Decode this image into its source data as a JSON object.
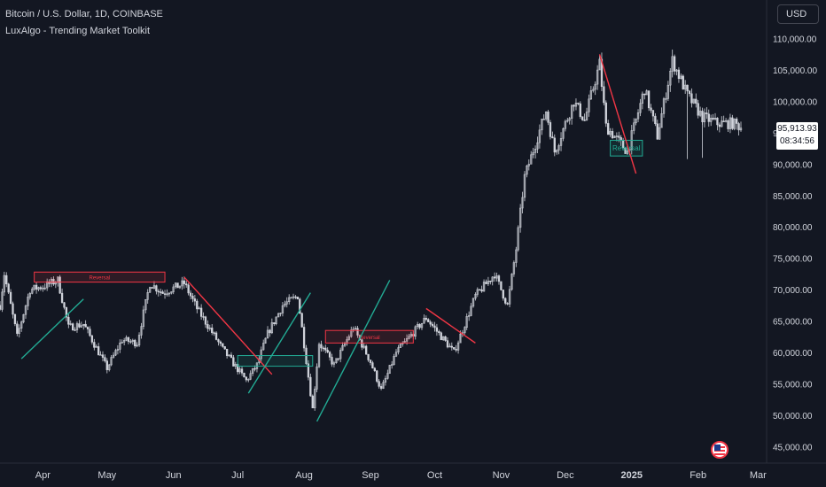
{
  "header": {
    "title": "Bitcoin / U.S. Dollar, 1D, COINBASE",
    "indicator": "LuxAlgo - Trending Market Toolkit"
  },
  "toolbar": {
    "currency": "USD"
  },
  "price_label": {
    "price": "95,913.93",
    "countdown": "08:34:56"
  },
  "chart_data": {
    "type": "candlestick",
    "x_tick_labels": [
      "Apr",
      "May",
      "Jun",
      "Jul",
      "Aug",
      "Sep",
      "Oct",
      "Nov",
      "Dec",
      "2025",
      "Feb",
      "Mar"
    ],
    "y_tick_labels": [
      "45,000.00",
      "50,000.00",
      "55,000.00",
      "60,000.00",
      "65,000.00",
      "70,000.00",
      "75,000.00",
      "80,000.00",
      "85,000.00",
      "90,000.00",
      "95,000.00",
      "100,000.00",
      "105,000.00",
      "110,000.00"
    ],
    "y_ticks": [
      45000,
      50000,
      55000,
      60000,
      65000,
      70000,
      75000,
      80000,
      85000,
      90000,
      95000,
      100000,
      105000,
      110000
    ],
    "x_range": [
      "2024-03-12",
      "2025-03-05"
    ],
    "last_price": 95913.93,
    "price_anchors": [
      [
        "2024-03-12",
        67500
      ],
      [
        "2024-03-14",
        72500
      ],
      [
        "2024-03-20",
        62500
      ],
      [
        "2024-03-26",
        70000
      ],
      [
        "2024-04-01",
        70500
      ],
      [
        "2024-04-08",
        71500
      ],
      [
        "2024-04-13",
        64000
      ],
      [
        "2024-04-20",
        64500
      ],
      [
        "2024-05-01",
        57500
      ],
      [
        "2024-05-08",
        62000
      ],
      [
        "2024-05-15",
        61500
      ],
      [
        "2024-05-21",
        71000
      ],
      [
        "2024-05-27",
        69500
      ],
      [
        "2024-06-06",
        71000
      ],
      [
        "2024-06-12",
        67000
      ],
      [
        "2024-06-24",
        60500
      ],
      [
        "2024-07-05",
        55500
      ],
      [
        "2024-07-10",
        58000
      ],
      [
        "2024-07-15",
        63000
      ],
      [
        "2024-07-22",
        67500
      ],
      [
        "2024-07-29",
        69000
      ],
      [
        "2024-08-05",
        51000
      ],
      [
        "2024-08-08",
        61500
      ],
      [
        "2024-08-15",
        58000
      ],
      [
        "2024-08-24",
        64000
      ],
      [
        "2024-09-01",
        58500
      ],
      [
        "2024-09-06",
        54000
      ],
      [
        "2024-09-13",
        60000
      ],
      [
        "2024-09-27",
        65500
      ],
      [
        "2024-10-10",
        60000
      ],
      [
        "2024-10-20",
        69000
      ],
      [
        "2024-10-29",
        72500
      ],
      [
        "2024-11-04",
        67500
      ],
      [
        "2024-11-08",
        76500
      ],
      [
        "2024-11-12",
        88000
      ],
      [
        "2024-11-22",
        98500
      ],
      [
        "2024-11-26",
        92000
      ],
      [
        "2024-12-05",
        100000
      ],
      [
        "2024-12-10",
        97000
      ],
      [
        "2024-12-17",
        106000
      ],
      [
        "2024-12-20",
        96000
      ],
      [
        "2024-12-30",
        92000
      ],
      [
        "2025-01-07",
        102000
      ],
      [
        "2025-01-13",
        94500
      ],
      [
        "2025-01-20",
        106500
      ],
      [
        "2025-01-27",
        101000
      ],
      [
        "2025-02-03",
        97500
      ],
      [
        "2025-02-10",
        96500
      ],
      [
        "2025-02-17",
        96500
      ],
      [
        "2025-02-21",
        95914
      ]
    ],
    "trend_lines": [
      {
        "color": "green",
        "from": [
          "2024-03-22",
          59000
        ],
        "to": [
          "2024-04-20",
          68500
        ]
      },
      {
        "color": "red",
        "from": [
          "2024-06-06",
          72000
        ],
        "to": [
          "2024-07-17",
          56500
        ]
      },
      {
        "color": "green",
        "from": [
          "2024-07-06",
          53500
        ],
        "to": [
          "2024-08-04",
          69500
        ]
      },
      {
        "color": "green",
        "from": [
          "2024-08-07",
          49000
        ],
        "to": [
          "2024-09-10",
          71500
        ]
      },
      {
        "color": "red",
        "from": [
          "2024-09-27",
          67000
        ],
        "to": [
          "2024-10-20",
          61500
        ]
      },
      {
        "color": "red",
        "from": [
          "2024-12-17",
          107500
        ],
        "to": [
          "2025-01-03",
          88500
        ]
      }
    ],
    "zones": [
      {
        "color": "red",
        "label": "Reversal",
        "from": "2024-03-28",
        "to": "2024-05-28",
        "top": 72800,
        "bottom": 71200
      },
      {
        "color": "green",
        "label": "",
        "from": "2024-07-01",
        "to": "2024-08-05",
        "top": 59500,
        "bottom": 57800
      },
      {
        "color": "red",
        "label": "Reversal",
        "from": "2024-08-11",
        "to": "2024-09-21",
        "top": 63500,
        "bottom": 61500
      },
      {
        "color": "green",
        "label": "Reversal",
        "from": "2024-12-22",
        "to": "2025-01-06",
        "top": 93800,
        "bottom": 91300
      }
    ],
    "colors": {
      "up": "#d1d4dc",
      "down": "#d1d4dc",
      "green": "#22ab94",
      "red": "#f23645",
      "background": "#131722",
      "axis_text": "#d1d4dc"
    }
  }
}
